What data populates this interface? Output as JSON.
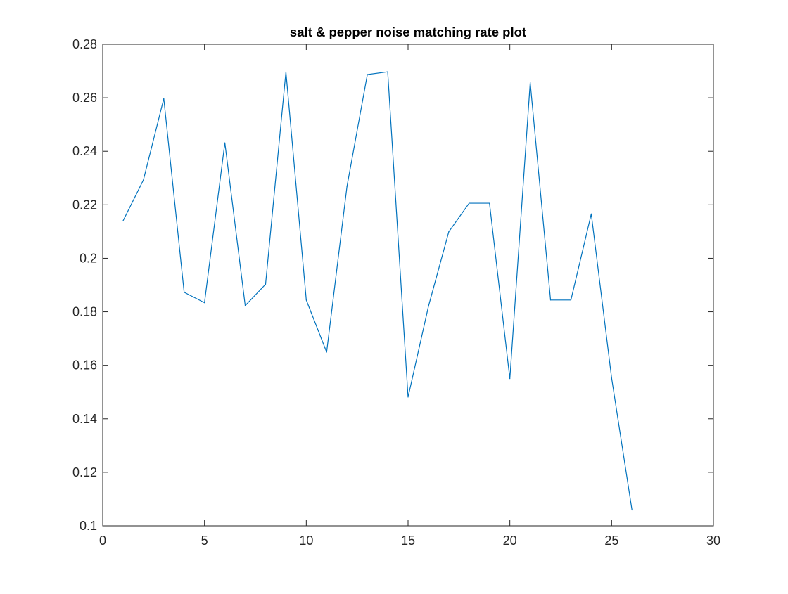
{
  "chart_data": {
    "type": "line",
    "title": "salt & pepper noise matching rate plot",
    "xlabel": "",
    "ylabel": "",
    "xlim": [
      0,
      30
    ],
    "ylim": [
      0.1,
      0.28
    ],
    "xticks": [
      0,
      5,
      10,
      15,
      20,
      25,
      30
    ],
    "xtick_labels": [
      "0",
      "5",
      "10",
      "15",
      "20",
      "25",
      "30"
    ],
    "yticks": [
      0.1,
      0.12,
      0.14,
      0.16,
      0.18,
      0.2,
      0.22,
      0.24,
      0.26,
      0.28
    ],
    "ytick_labels": [
      "0.1",
      "0.12",
      "0.14",
      "0.16",
      "0.18",
      "0.2",
      "0.22",
      "0.24",
      "0.26",
      "0.28"
    ],
    "grid": false,
    "legend": "none",
    "series": [
      {
        "color": "#0072BD",
        "x": [
          1,
          2,
          3,
          4,
          5,
          6,
          7,
          8,
          9,
          10,
          11,
          12,
          13,
          14,
          15,
          16,
          17,
          18,
          19,
          20,
          21,
          22,
          23,
          24,
          25,
          26
        ],
        "y": [
          0.214,
          0.2293,
          0.2597,
          0.1873,
          0.1834,
          0.2432,
          0.1823,
          0.1903,
          0.2697,
          0.1844,
          0.1649,
          0.2269,
          0.2687,
          0.2697,
          0.1481,
          0.182,
          0.2099,
          0.2206,
          0.2206,
          0.155,
          0.2657,
          0.1844,
          0.1844,
          0.2166,
          0.1552,
          0.1059
        ]
      }
    ]
  }
}
